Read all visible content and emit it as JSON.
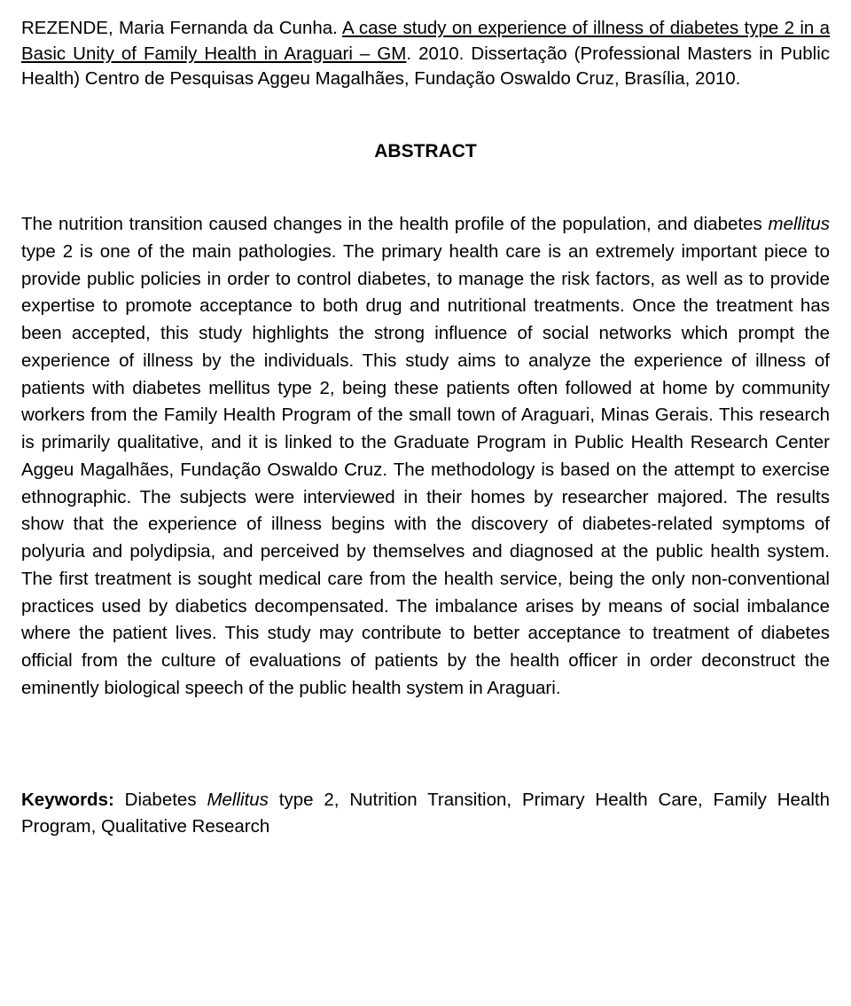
{
  "citation": {
    "author": "REZENDE, Maria Fernanda da Cunha. ",
    "title": "A case study on experience of illness of diabetes type 2 in a Basic Unity of Family Health in Araguari – GM",
    "year": ". 2010. Dissertação (Professional Masters in Public Health) Centro de Pesquisas Aggeu Magalhães, Fundação Oswaldo Cruz, Brasília, 2010."
  },
  "heading": "ABSTRACT",
  "abstract": {
    "p1": "The nutrition transition caused changes in the health profile of the population, and diabetes ",
    "p1i": "mellitus",
    "p2": " type 2 is one of the main pathologies. The primary health care is an extremely important piece to provide public policies in order to control diabetes, to manage the risk factors, as well as to provide expertise to promote acceptance to both drug and nutritional treatments. Once the treatment has been accepted, this study highlights the strong influence of social networks which prompt the experience of illness by the individuals. This study aims to analyze the experience of illness of patients with diabetes mellitus type 2, being these patients often followed at home by community workers from the Family Health Program of the small town of Araguari, Minas Gerais. This research is primarily qualitative, and it is linked to the Graduate Program in Public Health Research Center Aggeu Magalhães, Fundação Oswaldo Cruz. The methodology is based on the attempt to exercise ethnographic. The subjects were interviewed in their homes by researcher majored. The results show that the experience of illness begins with the discovery of diabetes-related symptoms of polyuria and polydipsia, and perceived by themselves and diagnosed at the public health system. The first treatment is sought medical care from the health service, being the only non-conventional practices used by diabetics decompensated. The imbalance arises by means of social imbalance where the patient lives. This study may contribute to better acceptance to treatment of diabetes official from the culture of evaluations of patients by the health officer in order deconstruct the eminently biological speech of the public health system in Araguari."
  },
  "keywords": {
    "label": "Keywords: ",
    "k1": "Diabetes ",
    "k1i": "Mellitus",
    "k2": " type 2, Nutrition Transition, Primary Health Care, Family Health Program, Qualitative Research"
  },
  "styles": {
    "font_family": "Arial",
    "body_fontsize": 20.5,
    "heading_fontsize": 21,
    "line_height": 1.5,
    "text_color": "#000000",
    "background_color": "#ffffff",
    "text_align": "justify"
  }
}
